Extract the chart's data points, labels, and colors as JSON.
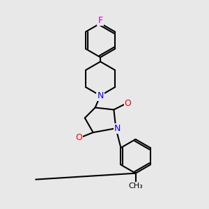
{
  "background_color": "#e8e8e8",
  "line_color": "#000000",
  "bond_width": 1.5,
  "atom_colors": {
    "N": "#0000ff",
    "O": "#ff0000",
    "F": "#cc00cc",
    "C": "#000000"
  },
  "font_size": 9,
  "fig_width": 3.0,
  "fig_height": 3.0,
  "dpi": 100
}
